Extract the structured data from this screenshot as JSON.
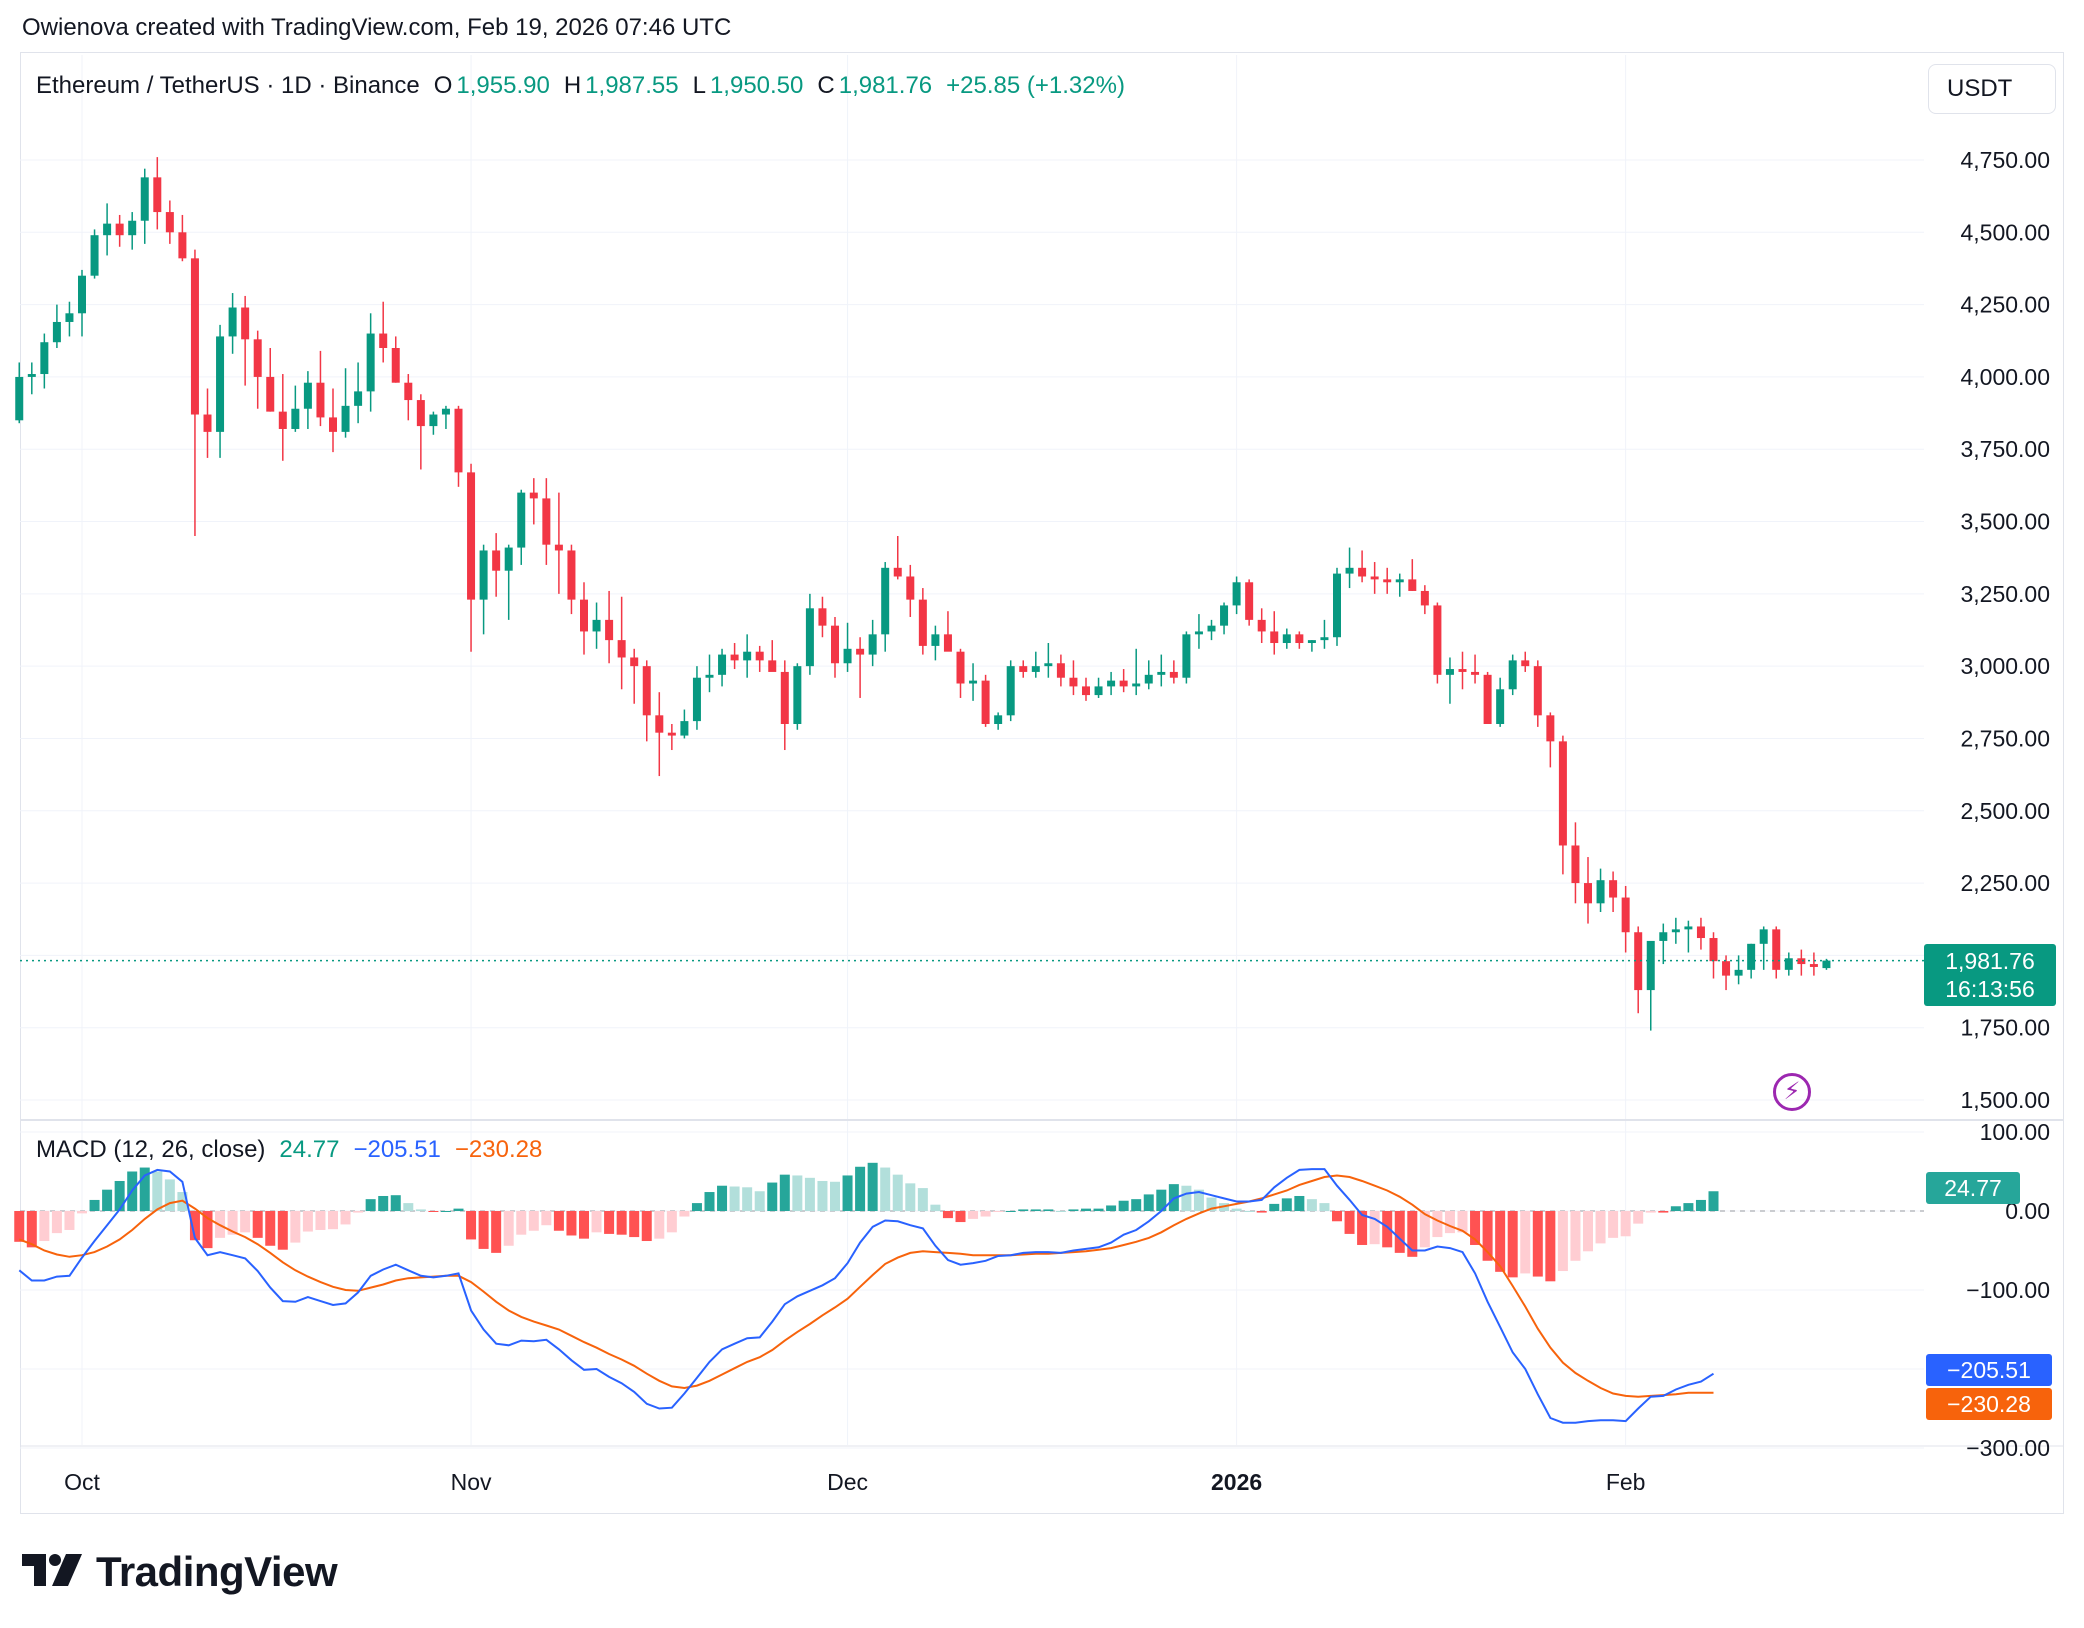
{
  "header": {
    "author_line": "Owienova created with TradingView.com, Feb 19, 2026 07:46 UTC"
  },
  "legend": {
    "symbol": "Ethereum / TetherUS · 1D · Binance",
    "open_label": "O",
    "open": "1,955.90",
    "high_label": "H",
    "high": "1,987.55",
    "low_label": "L",
    "low": "1,950.50",
    "close_label": "C",
    "close": "1,981.76",
    "change": "+25.85 (+1.32%)"
  },
  "currency_button": "USDT",
  "last_price": {
    "price": "1,981.76",
    "countdown": "16:13:56"
  },
  "macd_legend": {
    "title": "MACD (12, 26, close)",
    "histogram": "24.77",
    "macd": "−205.51",
    "signal": "−230.28"
  },
  "macd_tags": {
    "histogram": "24.77",
    "macd": "−205.51",
    "signal": "−230.28"
  },
  "logo_text": "TradingView",
  "colors": {
    "up": "#089981",
    "down": "#f23645",
    "macd": "#2962ff",
    "signal": "#f7630c",
    "hist_up_strong": "#26a69a",
    "hist_up_weak": "#b2dfdb",
    "hist_down_strong": "#ff5252",
    "hist_down_weak": "#ffcdd2"
  },
  "chart_data": [
    {
      "type": "candlestick",
      "title": "Ethereum / TetherUS · 1D · Binance",
      "ylim": [
        1450,
        4900
      ],
      "y_ticks": [
        "4,750.00",
        "4,500.00",
        "4,250.00",
        "4,000.00",
        "3,750.00",
        "3,500.00",
        "3,250.00",
        "3,000.00",
        "2,750.00",
        "2,500.00",
        "2,250.00",
        "1,750.00",
        "1,500.00"
      ],
      "y_tick_values": [
        4750,
        4500,
        4250,
        4000,
        3750,
        3500,
        3250,
        3000,
        2750,
        2500,
        2250,
        1750,
        1500
      ],
      "x_ticks": [
        "Oct",
        "Nov",
        "Dec",
        "2026",
        "Feb"
      ],
      "x_tick_days": [
        0,
        31,
        61,
        92,
        123
      ],
      "start_day": -5,
      "grid": true,
      "candles": [
        [
          3850,
          4050,
          3840,
          4000
        ],
        [
          4000,
          4050,
          3940,
          4010
        ],
        [
          4010,
          4150,
          3960,
          4120
        ],
        [
          4120,
          4250,
          4100,
          4190
        ],
        [
          4190,
          4260,
          4140,
          4220
        ],
        [
          4220,
          4370,
          4140,
          4350
        ],
        [
          4350,
          4510,
          4340,
          4490
        ],
        [
          4490,
          4600,
          4420,
          4530
        ],
        [
          4530,
          4560,
          4450,
          4490
        ],
        [
          4490,
          4570,
          4440,
          4540
        ],
        [
          4540,
          4720,
          4460,
          4690
        ],
        [
          4690,
          4760,
          4510,
          4570
        ],
        [
          4570,
          4610,
          4460,
          4500
        ],
        [
          4500,
          4560,
          4400,
          4410
        ],
        [
          4410,
          4440,
          3450,
          3870
        ],
        [
          3870,
          3960,
          3720,
          3810
        ],
        [
          3810,
          4180,
          3720,
          4140
        ],
        [
          4140,
          4290,
          4080,
          4240
        ],
        [
          4240,
          4280,
          3970,
          4130
        ],
        [
          4130,
          4160,
          3890,
          4000
        ],
        [
          4000,
          4100,
          3880,
          3880
        ],
        [
          3880,
          4010,
          3710,
          3820
        ],
        [
          3820,
          3970,
          3810,
          3890
        ],
        [
          3890,
          4020,
          3820,
          3980
        ],
        [
          3980,
          4090,
          3830,
          3860
        ],
        [
          3860,
          3960,
          3740,
          3810
        ],
        [
          3810,
          4030,
          3790,
          3900
        ],
        [
          3900,
          4050,
          3840,
          3950
        ],
        [
          3950,
          4220,
          3880,
          4150
        ],
        [
          4150,
          4260,
          4050,
          4100
        ],
        [
          4100,
          4140,
          3980,
          3980
        ],
        [
          3980,
          4010,
          3850,
          3920
        ],
        [
          3920,
          3940,
          3680,
          3830
        ],
        [
          3830,
          3880,
          3800,
          3870
        ],
        [
          3870,
          3900,
          3820,
          3890
        ],
        [
          3890,
          3900,
          3620,
          3670
        ],
        [
          3670,
          3700,
          3050,
          3230
        ],
        [
          3230,
          3420,
          3110,
          3400
        ],
        [
          3400,
          3460,
          3240,
          3330
        ],
        [
          3330,
          3420,
          3160,
          3410
        ],
        [
          3410,
          3610,
          3350,
          3600
        ],
        [
          3600,
          3650,
          3490,
          3580
        ],
        [
          3580,
          3650,
          3350,
          3420
        ],
        [
          3420,
          3600,
          3250,
          3400
        ],
        [
          3400,
          3420,
          3180,
          3230
        ],
        [
          3230,
          3290,
          3040,
          3120
        ],
        [
          3120,
          3220,
          3060,
          3160
        ],
        [
          3160,
          3260,
          3010,
          3090
        ],
        [
          3090,
          3240,
          2920,
          3030
        ],
        [
          3030,
          3060,
          2870,
          3000
        ],
        [
          3000,
          3020,
          2740,
          2830
        ],
        [
          2830,
          2910,
          2620,
          2770
        ],
        [
          2770,
          2800,
          2710,
          2760
        ],
        [
          2760,
          2850,
          2750,
          2810
        ],
        [
          2810,
          3000,
          2780,
          2960
        ],
        [
          2960,
          3040,
          2910,
          2970
        ],
        [
          2970,
          3060,
          2930,
          3040
        ],
        [
          3040,
          3080,
          2990,
          3020
        ],
        [
          3020,
          3110,
          2960,
          3050
        ],
        [
          3050,
          3070,
          2980,
          3020
        ],
        [
          3020,
          3090,
          2990,
          2980
        ],
        [
          2980,
          3020,
          2710,
          2800
        ],
        [
          2800,
          3010,
          2780,
          3000
        ],
        [
          3000,
          3250,
          2970,
          3200
        ],
        [
          3200,
          3240,
          3100,
          3140
        ],
        [
          3140,
          3170,
          2960,
          3010
        ],
        [
          3010,
          3150,
          2980,
          3060
        ],
        [
          3060,
          3100,
          2890,
          3040
        ],
        [
          3040,
          3160,
          3000,
          3110
        ],
        [
          3110,
          3360,
          3050,
          3340
        ],
        [
          3340,
          3450,
          3300,
          3310
        ],
        [
          3310,
          3350,
          3170,
          3230
        ],
        [
          3230,
          3270,
          3040,
          3070
        ],
        [
          3070,
          3140,
          3020,
          3110
        ],
        [
          3110,
          3190,
          3060,
          3050
        ],
        [
          3050,
          3060,
          2890,
          2940
        ],
        [
          2940,
          3010,
          2880,
          2950
        ],
        [
          2950,
          2970,
          2790,
          2800
        ],
        [
          2800,
          2840,
          2780,
          2830
        ],
        [
          2830,
          3020,
          2810,
          3000
        ],
        [
          3000,
          3020,
          2960,
          2980
        ],
        [
          2980,
          3050,
          2960,
          3000
        ],
        [
          3000,
          3080,
          2960,
          3010
        ],
        [
          3010,
          3040,
          2930,
          2960
        ],
        [
          2960,
          3020,
          2900,
          2930
        ],
        [
          2930,
          2960,
          2880,
          2900
        ],
        [
          2900,
          2960,
          2890,
          2930
        ],
        [
          2930,
          2980,
          2900,
          2950
        ],
        [
          2950,
          2990,
          2910,
          2930
        ],
        [
          2930,
          3060,
          2900,
          2940
        ],
        [
          2940,
          3020,
          2920,
          2970
        ],
        [
          2970,
          3040,
          2930,
          2980
        ],
        [
          2980,
          3020,
          2940,
          2960
        ],
        [
          2960,
          3120,
          2940,
          3110
        ],
        [
          3110,
          3180,
          3060,
          3120
        ],
        [
          3120,
          3160,
          3090,
          3140
        ],
        [
          3140,
          3220,
          3110,
          3210
        ],
        [
          3210,
          3310,
          3180,
          3290
        ],
        [
          3290,
          3300,
          3140,
          3160
        ],
        [
          3160,
          3200,
          3080,
          3120
        ],
        [
          3120,
          3190,
          3040,
          3080
        ],
        [
          3080,
          3130,
          3060,
          3110
        ],
        [
          3110,
          3120,
          3060,
          3080
        ],
        [
          3080,
          3090,
          3050,
          3090
        ],
        [
          3090,
          3160,
          3060,
          3100
        ],
        [
          3100,
          3340,
          3070,
          3320
        ],
        [
          3320,
          3410,
          3270,
          3340
        ],
        [
          3340,
          3400,
          3290,
          3310
        ],
        [
          3310,
          3360,
          3250,
          3300
        ],
        [
          3300,
          3340,
          3250,
          3290
        ],
        [
          3290,
          3320,
          3240,
          3300
        ],
        [
          3300,
          3370,
          3260,
          3260
        ],
        [
          3260,
          3280,
          3180,
          3210
        ],
        [
          3210,
          3220,
          2940,
          2970
        ],
        [
          2970,
          3030,
          2870,
          2990
        ],
        [
          2990,
          3050,
          2920,
          2980
        ],
        [
          2980,
          3040,
          2940,
          2970
        ],
        [
          2970,
          2980,
          2800,
          2800
        ],
        [
          2800,
          2960,
          2790,
          2920
        ],
        [
          2920,
          3040,
          2900,
          3020
        ],
        [
          3020,
          3050,
          2980,
          3000
        ],
        [
          3000,
          3020,
          2790,
          2830
        ],
        [
          2830,
          2840,
          2650,
          2740
        ],
        [
          2740,
          2760,
          2280,
          2380
        ],
        [
          2380,
          2460,
          2180,
          2250
        ],
        [
          2250,
          2340,
          2110,
          2180
        ],
        [
          2180,
          2300,
          2150,
          2260
        ],
        [
          2260,
          2290,
          2150,
          2200
        ],
        [
          2200,
          2240,
          2010,
          2080
        ],
        [
          2080,
          2100,
          1800,
          1880
        ],
        [
          1880,
          2020,
          1740,
          2050
        ],
        [
          2050,
          2110,
          1970,
          2080
        ],
        [
          2080,
          2130,
          2040,
          2090
        ],
        [
          2090,
          2120,
          2010,
          2100
        ],
        [
          2100,
          2130,
          2020,
          2060
        ],
        [
          2060,
          2080,
          1920,
          1980
        ],
        [
          1980,
          2000,
          1880,
          1930
        ],
        [
          1930,
          2000,
          1900,
          1950
        ],
        [
          1950,
          2040,
          1920,
          2040
        ],
        [
          2040,
          2100,
          1950,
          2090
        ],
        [
          2090,
          2100,
          1920,
          1950
        ],
        [
          1950,
          2010,
          1930,
          1990
        ],
        [
          1990,
          2020,
          1930,
          1970
        ],
        [
          1970,
          2010,
          1930,
          1960
        ],
        [
          1956,
          1988,
          1950,
          1982
        ]
      ],
      "last_price": 1981.76
    },
    {
      "type": "macd",
      "title": "MACD (12, 26, close)",
      "ylim": [
        -300,
        120
      ],
      "y_ticks": [
        "100.00",
        "0.00",
        "−100.00",
        "−300.00"
      ],
      "y_tick_values": [
        100,
        0,
        -100,
        -300
      ],
      "macd": [
        -75,
        -88,
        -88,
        -83,
        -82,
        -59,
        -38,
        -18,
        2,
        26,
        45,
        52,
        50,
        37,
        -34,
        -56,
        -52,
        -56,
        -60,
        -76,
        -97,
        -114,
        -115,
        -109,
        -114,
        -119,
        -117,
        -103,
        -82,
        -74,
        -68,
        -75,
        -82,
        -84,
        -82,
        -79,
        -126,
        -150,
        -168,
        -170,
        -164,
        -165,
        -163,
        -175,
        -189,
        -201,
        -200,
        -210,
        -218,
        -229,
        -244,
        -250,
        -249,
        -231,
        -211,
        -191,
        -175,
        -168,
        -161,
        -160,
        -140,
        -118,
        -108,
        -101,
        -94,
        -85,
        -66,
        -40,
        -20,
        -12,
        -13,
        -18,
        -22,
        -44,
        -62,
        -68,
        -66,
        -63,
        -57,
        -56,
        -53,
        -52,
        -52,
        -53,
        -50,
        -48,
        -46,
        -40,
        -30,
        -24,
        -13,
        0,
        16,
        22,
        24,
        20,
        16,
        12,
        12,
        14,
        30,
        42,
        52,
        53,
        53,
        32,
        14,
        -5,
        -10,
        -20,
        -35,
        -50,
        -50,
        -45,
        -47,
        -52,
        -79,
        -115,
        -147,
        -179,
        -200,
        -232,
        -262,
        -268,
        -268,
        -266,
        -265,
        -265,
        -266,
        -250,
        -235,
        -234,
        -226,
        -220,
        -216,
        -206
      ],
      "signal": [
        -36,
        -42,
        -50,
        -55,
        -58,
        -56,
        -52,
        -45,
        -36,
        -24,
        -10,
        2,
        10,
        13,
        3,
        -9,
        -18,
        -26,
        -33,
        -42,
        -53,
        -65,
        -75,
        -83,
        -90,
        -96,
        -100,
        -101,
        -97,
        -93,
        -88,
        -85,
        -84,
        -83,
        -82,
        -82,
        -90,
        -102,
        -115,
        -126,
        -134,
        -140,
        -145,
        -150,
        -158,
        -166,
        -173,
        -181,
        -188,
        -196,
        -206,
        -215,
        -222,
        -224,
        -221,
        -215,
        -207,
        -199,
        -191,
        -185,
        -176,
        -164,
        -153,
        -143,
        -132,
        -122,
        -111,
        -96,
        -81,
        -67,
        -59,
        -53,
        -51,
        -52,
        -53,
        -54,
        -56,
        -56,
        -56,
        -56,
        -55,
        -54,
        -54,
        -53,
        -52,
        -51,
        -49,
        -47,
        -43,
        -39,
        -34,
        -27,
        -18,
        -10,
        -3,
        3,
        6,
        9,
        12,
        16,
        21,
        26,
        33,
        38,
        43,
        45,
        43,
        38,
        32,
        26,
        18,
        8,
        -4,
        -12,
        -19,
        -25,
        -36,
        -52,
        -70,
        -95,
        -121,
        -149,
        -173,
        -192,
        -205,
        -215,
        -224,
        -231,
        -234,
        -235,
        -234,
        -233,
        -232,
        -230,
        -230,
        -230
      ],
      "histogram": [
        -39,
        -46,
        -38,
        -28,
        -24,
        -3,
        14,
        27,
        38,
        50,
        55,
        50,
        40,
        24,
        -37,
        -47,
        -34,
        -30,
        -27,
        -34,
        -44,
        -49,
        -40,
        -26,
        -24,
        -23,
        -17,
        -2,
        15,
        19,
        20,
        10,
        2,
        -1,
        0,
        3,
        -36,
        -48,
        -53,
        -44,
        -30,
        -25,
        -18,
        -25,
        -31,
        -35,
        -27,
        -29,
        -30,
        -33,
        -38,
        -35,
        -27,
        -7,
        10,
        24,
        32,
        31,
        30,
        25,
        36,
        46,
        45,
        42,
        38,
        37,
        45,
        56,
        61,
        55,
        46,
        35,
        29,
        8,
        -9,
        -14,
        -10,
        -7,
        -1,
        0,
        2,
        2,
        2,
        0,
        2,
        3,
        3,
        7,
        13,
        15,
        21,
        27,
        34,
        32,
        27,
        17,
        10,
        3,
        0,
        -2,
        9,
        16,
        19,
        15,
        10,
        -13,
        -29,
        -43,
        -42,
        -46,
        -53,
        -58,
        -46,
        -33,
        -28,
        -27,
        -43,
        -63,
        -77,
        -84,
        -79,
        -83,
        -89,
        -76,
        -63,
        -51,
        -41,
        -34,
        -32,
        -16,
        -2,
        -2,
        6,
        10,
        14,
        25
      ]
    }
  ]
}
